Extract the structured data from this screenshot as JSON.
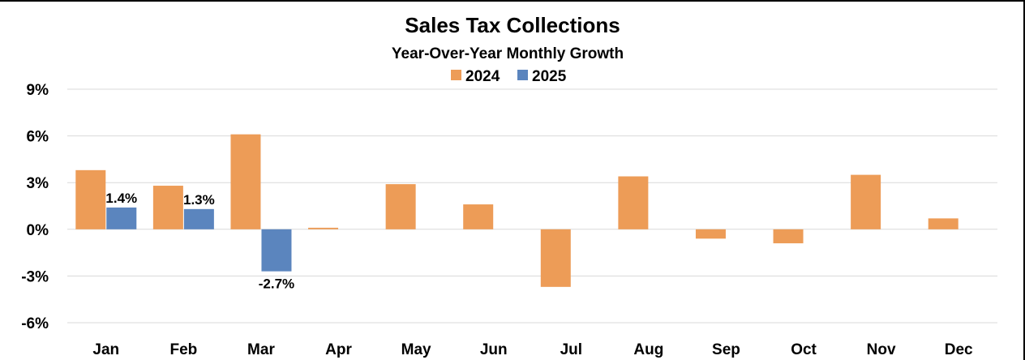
{
  "chart_data": {
    "type": "bar",
    "title": "Sales Tax Collections",
    "subtitle": "Year-Over-Year Monthly Growth",
    "xlabel": "",
    "ylabel": "",
    "categories": [
      "Jan",
      "Feb",
      "Mar",
      "Apr",
      "May",
      "Jun",
      "Jul",
      "Aug",
      "Sep",
      "Oct",
      "Nov",
      "Dec"
    ],
    "ylim": [
      -6,
      9
    ],
    "yticks": [
      9,
      6,
      3,
      0,
      -3,
      -6
    ],
    "ytick_labels": [
      "9%",
      "6%",
      "3%",
      "0%",
      "-3%",
      "-6%"
    ],
    "grid": true,
    "legend_position": "top-center",
    "series": [
      {
        "name": "2024",
        "color": "#ed9c57",
        "values": [
          3.8,
          2.8,
          6.1,
          0.1,
          2.9,
          1.6,
          -3.7,
          3.4,
          -0.6,
          -0.9,
          3.5,
          0.7
        ],
        "data_labels": [
          null,
          null,
          null,
          null,
          null,
          null,
          null,
          null,
          null,
          null,
          null,
          null
        ]
      },
      {
        "name": "2025",
        "color": "#5b85be",
        "values": [
          1.4,
          1.3,
          -2.7,
          null,
          null,
          null,
          null,
          null,
          null,
          null,
          null,
          null
        ],
        "data_labels": [
          "1.4%",
          "1.3%",
          "-2.7%",
          null,
          null,
          null,
          null,
          null,
          null,
          null,
          null,
          null
        ]
      }
    ]
  }
}
